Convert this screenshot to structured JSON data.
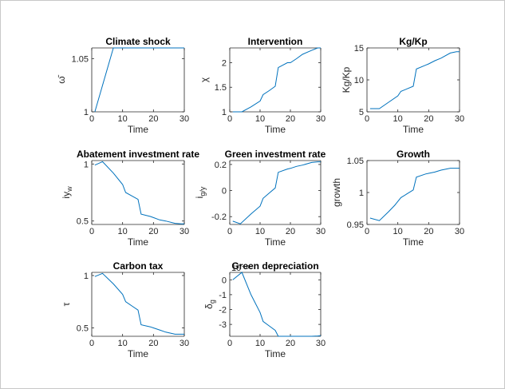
{
  "chart_data": [
    {
      "type": "line",
      "title": "Climate shock",
      "xlabel": "Time",
      "ylabel": "ω̄",
      "xlim": [
        0,
        30
      ],
      "ylim": [
        1,
        1.06
      ],
      "xticks": [
        0,
        10,
        20,
        30
      ],
      "yticks": [
        1,
        1.05
      ],
      "ytick_labels": [
        "1",
        "1.05"
      ],
      "x": [
        1,
        7,
        30
      ],
      "values": [
        1.0,
        1.06,
        1.06
      ]
    },
    {
      "type": "line",
      "title": "Intervention",
      "xlabel": "Time",
      "ylabel": "χ",
      "xlim": [
        0,
        30
      ],
      "ylim": [
        1,
        2.3
      ],
      "xticks": [
        0,
        10,
        20,
        30
      ],
      "yticks": [
        1,
        1.5,
        2
      ],
      "ytick_labels": [
        "1",
        "1.5",
        "2"
      ],
      "x": [
        1,
        4,
        7,
        10,
        11,
        13,
        15,
        16,
        19,
        20,
        22,
        24,
        27,
        29,
        30
      ],
      "values": [
        1.0,
        1.0,
        1.1,
        1.22,
        1.35,
        1.43,
        1.52,
        1.9,
        2.0,
        2.0,
        2.08,
        2.17,
        2.25,
        2.3,
        2.3
      ]
    },
    {
      "type": "line",
      "title": "Kg/Kp",
      "xlabel": "Time",
      "ylabel": "Kg/Kp",
      "xlim": [
        0,
        30
      ],
      "ylim": [
        5,
        15
      ],
      "xticks": [
        0,
        10,
        20,
        30
      ],
      "yticks": [
        5,
        10,
        15
      ],
      "ytick_labels": [
        "5",
        "10",
        "15"
      ],
      "x": [
        1,
        4,
        7,
        10,
        11,
        13,
        15,
        16,
        19,
        20,
        22,
        24,
        27,
        29,
        30
      ],
      "values": [
        5.5,
        5.5,
        6.5,
        7.5,
        8.2,
        8.6,
        9.0,
        11.7,
        12.3,
        12.5,
        13.0,
        13.4,
        14.2,
        14.4,
        14.4
      ]
    },
    {
      "type": "line",
      "title": "Abatement investment rate",
      "xlabel": "Time",
      "ylabel": "iy_w",
      "xlim": [
        0,
        30
      ],
      "ylim": [
        0.47,
        1.03
      ],
      "xticks": [
        0,
        10,
        20,
        30
      ],
      "yticks": [
        0.5,
        1
      ],
      "ytick_labels": [
        "0.5",
        "1"
      ],
      "x": [
        1,
        3.5,
        7,
        10,
        11,
        13,
        15,
        16,
        19,
        20,
        22,
        24,
        27,
        29,
        30
      ],
      "values": [
        0.99,
        1.02,
        0.92,
        0.82,
        0.75,
        0.72,
        0.69,
        0.56,
        0.54,
        0.53,
        0.51,
        0.5,
        0.48,
        0.475,
        0.475
      ]
    },
    {
      "type": "line",
      "title": "Green investment rate",
      "xlabel": "Time",
      "ylabel": "i_g/y",
      "xlim": [
        0,
        30
      ],
      "ylim": [
        -0.26,
        0.23
      ],
      "xticks": [
        0,
        10,
        20,
        30
      ],
      "yticks": [
        -0.2,
        0,
        0.2
      ],
      "ytick_labels": [
        "-0.2",
        "0",
        "0.2"
      ],
      "x": [
        1,
        3.5,
        7,
        10,
        11,
        13,
        15,
        16,
        19,
        20,
        22,
        24,
        27,
        29,
        30
      ],
      "values": [
        -0.235,
        -0.255,
        -0.18,
        -0.12,
        -0.06,
        -0.02,
        0.02,
        0.14,
        0.165,
        0.17,
        0.185,
        0.195,
        0.215,
        0.22,
        0.22
      ]
    },
    {
      "type": "line",
      "title": "Growth",
      "xlabel": "Time",
      "ylabel": "growth",
      "xlim": [
        0,
        30
      ],
      "ylim": [
        0.95,
        1.05
      ],
      "xticks": [
        0,
        10,
        20,
        30
      ],
      "yticks": [
        0.95,
        1,
        1.05
      ],
      "ytick_labels": [
        "0.95",
        "1",
        "1.05"
      ],
      "x": [
        1,
        4,
        7,
        9,
        11,
        13,
        15,
        16,
        19,
        20,
        22,
        24,
        27,
        29,
        30
      ],
      "values": [
        0.96,
        0.956,
        0.97,
        0.98,
        0.992,
        0.998,
        1.004,
        1.024,
        1.029,
        1.03,
        1.032,
        1.035,
        1.038,
        1.038,
        1.038
      ]
    },
    {
      "type": "line",
      "title": "Carbon tax",
      "xlabel": "Time",
      "ylabel": "τ",
      "xlim": [
        0,
        30
      ],
      "ylim": [
        0.42,
        1.03
      ],
      "xticks": [
        0,
        10,
        20,
        30
      ],
      "yticks": [
        0.5,
        1
      ],
      "ytick_labels": [
        "0.5",
        "1"
      ],
      "x": [
        1,
        3.5,
        7,
        10,
        11,
        13,
        15,
        16,
        19,
        20,
        22,
        24,
        27,
        29,
        30
      ],
      "values": [
        0.99,
        1.02,
        0.92,
        0.82,
        0.75,
        0.71,
        0.67,
        0.53,
        0.51,
        0.5,
        0.48,
        0.46,
        0.44,
        0.44,
        0.44
      ]
    },
    {
      "type": "line",
      "title": "Green depreciation",
      "xlabel": "Time",
      "ylabel": "δ_g",
      "exponent_label": "10⁻⁶",
      "xlim": [
        0,
        30
      ],
      "ylim": [
        -3.8,
        0.5
      ],
      "xticks": [
        0,
        10,
        20,
        30
      ],
      "yticks": [
        -3,
        -2,
        -1,
        0
      ],
      "ytick_labels": [
        "-3",
        "-2",
        "-1",
        "0"
      ],
      "x": [
        1,
        4,
        7,
        10,
        11,
        13,
        15,
        16,
        19,
        20,
        22,
        24,
        27,
        29,
        30
      ],
      "values": [
        0.0,
        0.5,
        -1.0,
        -2.2,
        -2.8,
        -3.1,
        -3.4,
        -3.8,
        -3.8,
        -3.8,
        -3.8,
        -3.8,
        -3.8,
        -3.78,
        -3.76
      ]
    }
  ],
  "colors": {
    "line": "#0072bd",
    "axis": "#262626",
    "frame": "#c8c8c8"
  }
}
